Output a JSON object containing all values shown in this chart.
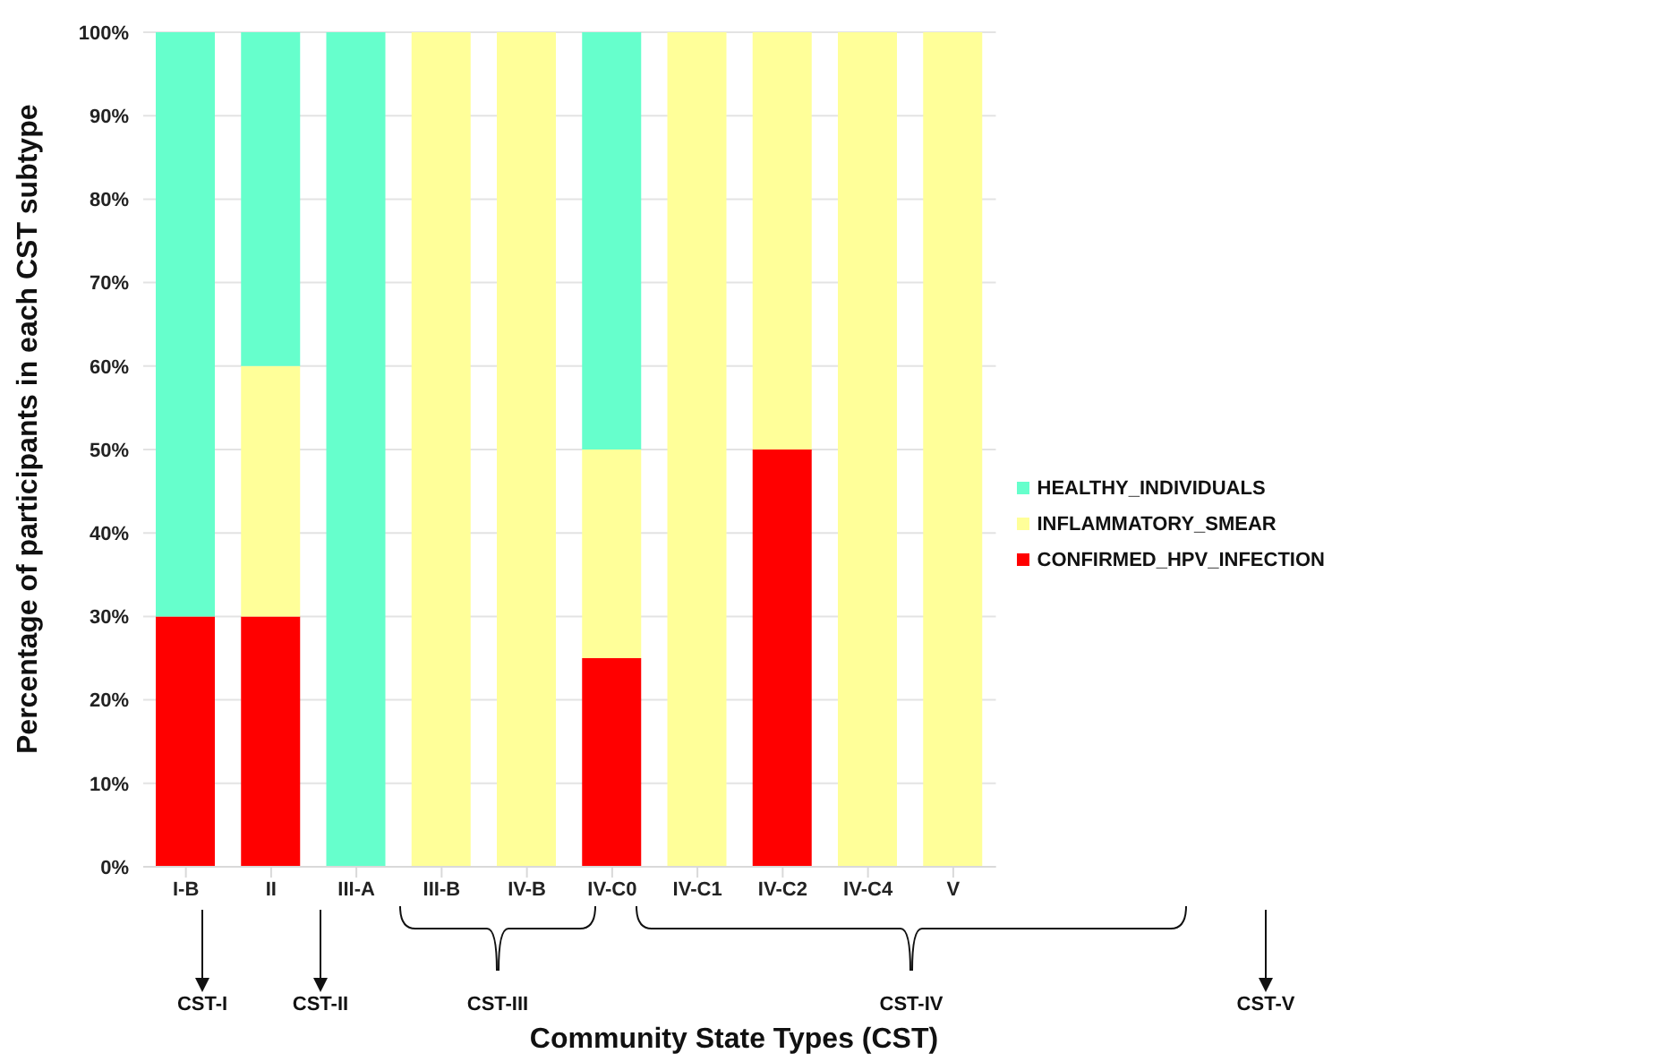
{
  "chart_data": {
    "type": "bar",
    "stacked": true,
    "xlabel": "Community State Types (CST)",
    "ylabel": "Percentage of participants in each CST subtype",
    "categories": [
      "I-B",
      "II",
      "III-A",
      "III-B",
      "IV-B",
      "IV-C0",
      "IV-C1",
      "IV-C2",
      "IV-C4",
      "V"
    ],
    "series": [
      {
        "name": "CONFIRMED_HPV_INFECTION",
        "color": "#ff0000",
        "values": [
          30,
          30,
          0,
          0,
          0,
          25,
          0,
          50,
          0,
          0
        ]
      },
      {
        "name": "INFLAMMATORY_SMEAR",
        "color": "#ffff99",
        "values": [
          0,
          30,
          0,
          100,
          100,
          25,
          100,
          50,
          100,
          100
        ]
      },
      {
        "name": "HEALTHY_INDIVIDUALS",
        "color": "#66ffcc",
        "values": [
          70,
          40,
          100,
          0,
          0,
          50,
          0,
          0,
          0,
          0
        ]
      }
    ],
    "ylim": [
      0,
      100
    ],
    "yticks": [
      {
        "value": 0,
        "label": "0%"
      },
      {
        "value": 10,
        "label": "10%"
      },
      {
        "value": 20,
        "label": "20%"
      },
      {
        "value": 30,
        "label": "30%"
      },
      {
        "value": 40,
        "label": "40%"
      },
      {
        "value": 50,
        "label": "50%"
      },
      {
        "value": 60,
        "label": "60%"
      },
      {
        "value": 70,
        "label": "70%"
      },
      {
        "value": 80,
        "label": "80%"
      },
      {
        "value": 90,
        "label": "90%"
      },
      {
        "value": 100,
        "label": "100%"
      }
    ],
    "grid": "y",
    "legend": "right",
    "annotations": [
      "CST-I",
      "CST-II",
      "CST-III",
      "CST-IV",
      "CST-V"
    ]
  }
}
